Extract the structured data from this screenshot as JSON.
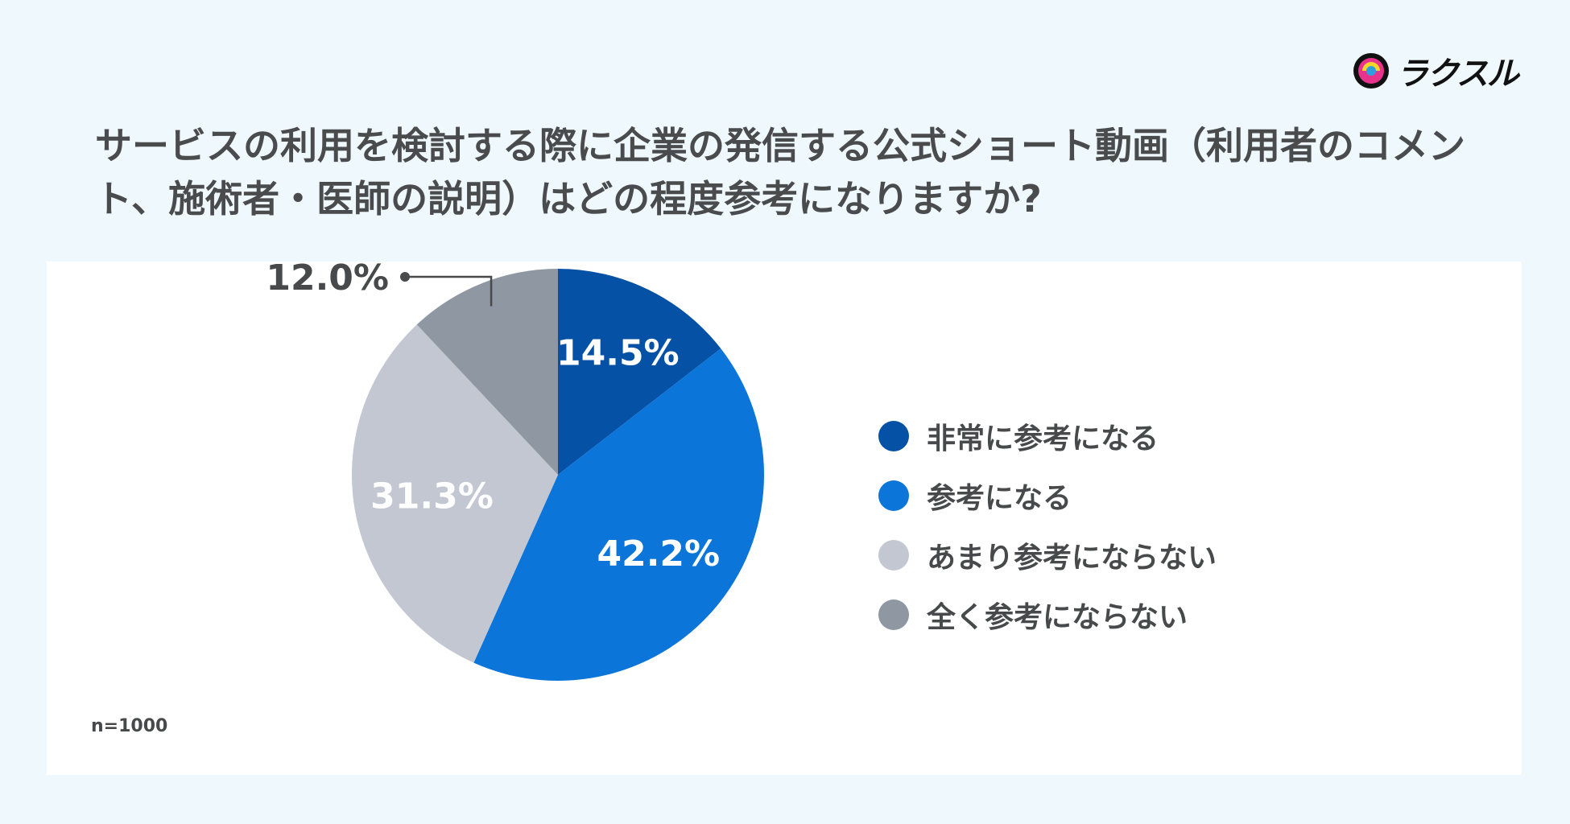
{
  "brand": {
    "name": "ラクスル"
  },
  "chart_data": {
    "type": "pie",
    "title": "サービスの利用を検討する際に企業の発信する公式ショート動画（利用者のコメント、施術者・医師の説明）はどの程度参考になりますか?",
    "note": "n=1000",
    "slices": [
      {
        "label": "非常に参考になる",
        "value": 14.5,
        "display": "14.5%",
        "color": "#0551a5"
      },
      {
        "label": "参考になる",
        "value": 42.2,
        "display": "42.2%",
        "color": "#0b75d9"
      },
      {
        "label": "あまり参考にならない",
        "value": 31.3,
        "display": "31.3%",
        "color": "#c2c7d2"
      },
      {
        "label": "全く参考にならない",
        "value": 12.0,
        "display": "12.0%",
        "color": "#8e97a2"
      }
    ],
    "legend_position": "right"
  }
}
